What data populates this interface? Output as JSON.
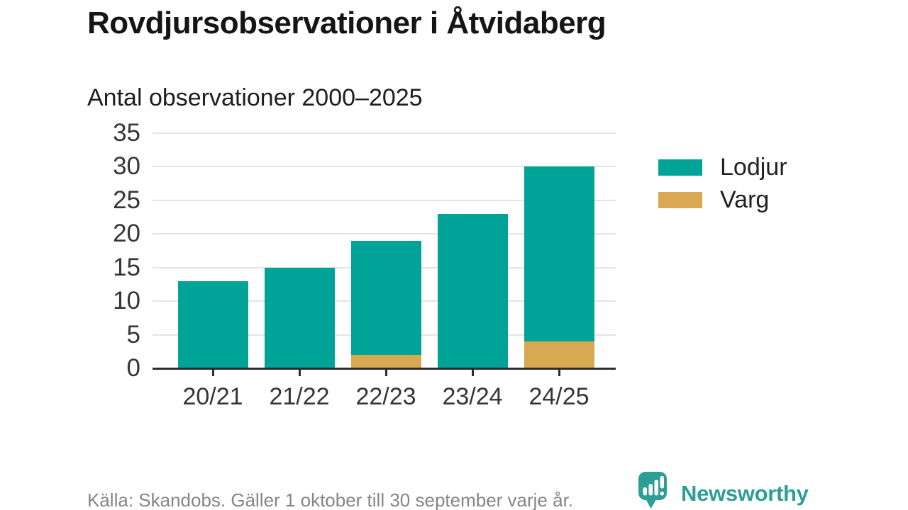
{
  "header": {
    "title": "Rovdjursobservationer i Åtvidaberg",
    "subtitle": "Antal observationer 2000–2025"
  },
  "chart_data": {
    "type": "bar",
    "stacked": true,
    "title": "Antal observationer 2000–2025",
    "categories": [
      "20/21",
      "21/22",
      "22/23",
      "23/24",
      "24/25"
    ],
    "series": [
      {
        "name": "Lodjur",
        "color": "#00a398",
        "values": [
          13,
          15,
          17,
          23,
          26
        ]
      },
      {
        "name": "Varg",
        "color": "#d9a853",
        "values": [
          0,
          0,
          2,
          0,
          4
        ]
      }
    ],
    "stack_order_bottom_to_top": [
      "Varg",
      "Lodjur"
    ],
    "totals": [
      13,
      15,
      19,
      23,
      30
    ],
    "xlabel": "",
    "ylabel": "",
    "ylim": [
      0,
      35
    ],
    "yticks": [
      0,
      5,
      10,
      15,
      20,
      25,
      30,
      35
    ],
    "grid": "horizontal",
    "legend_position": "right"
  },
  "legend": {
    "items": [
      {
        "label": "Lodjur",
        "color": "#00a398"
      },
      {
        "label": "Varg",
        "color": "#d9a853"
      }
    ]
  },
  "footer": {
    "source": "Källa: Skandobs. Gäller 1 oktober till 30 september varje år.",
    "brand": "Newsworthy"
  },
  "colors": {
    "lodjur": "#00a398",
    "varg": "#d9a853",
    "brand_teal": "#2d9e96",
    "axis_text": "#363636",
    "gridline": "#e4e4e4",
    "axis_line": "#2d2d2d",
    "source_text": "#858585"
  },
  "icons": {
    "brand_icon": "newsworthy-speech-bubble-chart-icon"
  }
}
